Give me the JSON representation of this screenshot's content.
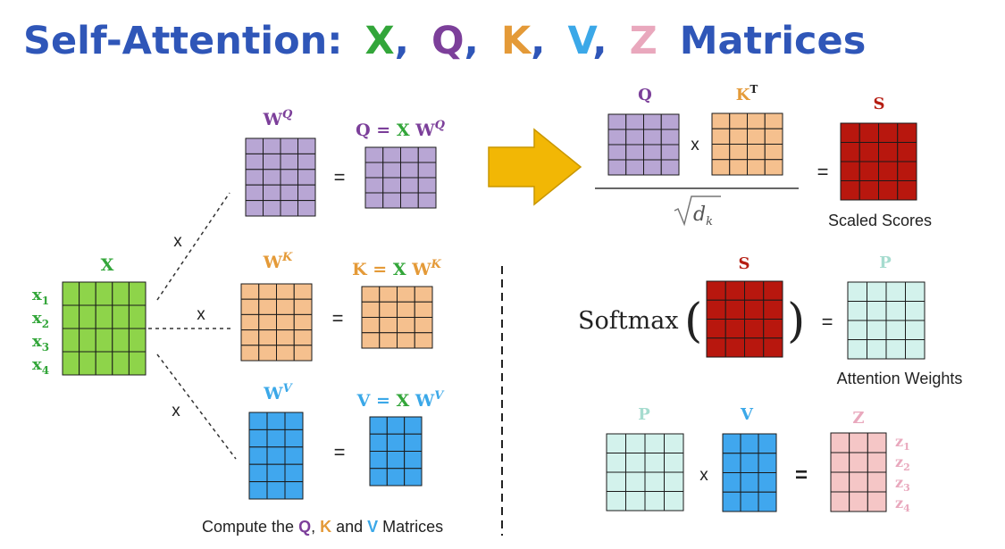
{
  "colors": {
    "x": "#8ed44a",
    "x_text": "#33a63a",
    "q": "#b8a6d4",
    "q_text": "#7c3f9a",
    "k": "#f5c08e",
    "k_text": "#e49a38",
    "v": "#40a7ee",
    "v_text": "#3ba8e8",
    "s": "#b8170e",
    "s_text": "#b51d12",
    "p": "#d3f2ec",
    "p_text": "#a6dccf",
    "z": "#f5c6c6",
    "z_text": "#e9a8bd",
    "title": "#2f56b8",
    "arrow": "#f2b705"
  },
  "title": {
    "prefix": "Self-Attention:",
    "x": "X",
    "c1": ",",
    "q": "Q",
    "c2": ",",
    "k": "K",
    "c3": ",",
    "v": "V",
    "c4": ",",
    "z": "Z",
    "suffix": "Matrices"
  },
  "left": {
    "x_label": "X",
    "x_rows": [
      {
        "base": "x",
        "sub": "1"
      },
      {
        "base": "x",
        "sub": "2"
      },
      {
        "base": "x",
        "sub": "3"
      },
      {
        "base": "x",
        "sub": "4"
      }
    ],
    "times": "x",
    "equals": "=",
    "wq": {
      "base": "W",
      "sup": "Q"
    },
    "wk": {
      "base": "W",
      "sup": "K"
    },
    "wv": {
      "base": "W",
      "sup": "V"
    },
    "q_eq": {
      "lhs": "Q",
      "eq": "=",
      "x": "X",
      "w": "W",
      "sup": "Q"
    },
    "k_eq": {
      "lhs": "K",
      "eq": "=",
      "x": "X",
      "w": "W",
      "sup": "K"
    },
    "v_eq": {
      "lhs": "V",
      "eq": "=",
      "x": "X",
      "w": "W",
      "sup": "V"
    },
    "caption": {
      "prefix": "Compute the ",
      "q": "Q",
      "sep1": ", ",
      "k": "K",
      "sep2": " and ",
      "v": "V",
      "suffix": " Matrices"
    }
  },
  "right": {
    "q_label": "Q",
    "kt_label": {
      "base": "K",
      "sup": "T"
    },
    "times": "x",
    "sqrt_var": {
      "base": "d",
      "sub": "k"
    },
    "equals": "=",
    "s_label": "S",
    "scaled_scores": "Scaled Scores",
    "softmax": "Softmax",
    "s_label2": "S",
    "p_label": "P",
    "attention_weights": "Attention Weights",
    "p_label2": "P",
    "v_label": "V",
    "z_label": "Z",
    "z_rows": [
      {
        "base": "z",
        "sub": "1"
      },
      {
        "base": "z",
        "sub": "2"
      },
      {
        "base": "z",
        "sub": "3"
      },
      {
        "base": "z",
        "sub": "4"
      }
    ]
  }
}
